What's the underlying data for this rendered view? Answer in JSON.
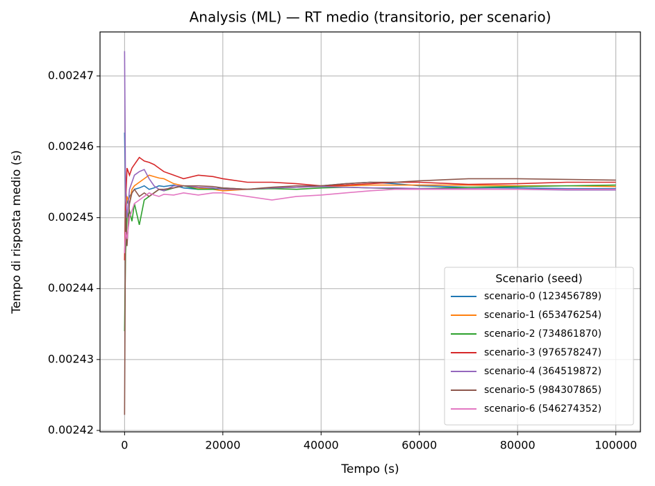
{
  "chart_data": {
    "type": "line",
    "title": "Analysis (ML) — RT medio (transitorio, per scenario)",
    "x_label": "Tempo (s)",
    "y_label": "Tempo di risposta medio (s)",
    "legend_title": "Scenario (seed)",
    "legend_position": "lower right",
    "grid": true,
    "xlim": [
      -5000,
      105000
    ],
    "xticks": [
      0,
      20000,
      40000,
      60000,
      80000,
      100000
    ],
    "ylim": [
      0.0024198,
      0.0024762
    ],
    "yticks": [
      0.00242,
      0.00243,
      0.00244,
      0.00245,
      0.00246,
      0.00247
    ],
    "x": [
      0,
      200,
      500,
      1000,
      1500,
      2000,
      3000,
      4000,
      5000,
      6000,
      7000,
      8000,
      10000,
      12000,
      15000,
      18000,
      20000,
      25000,
      30000,
      35000,
      40000,
      45000,
      50000,
      55000,
      60000,
      70000,
      80000,
      90000,
      100000
    ],
    "series": [
      {
        "name": "scenario-0 (123456789)",
        "color": "#1f77b4",
        "values": [
          0.002462,
          0.002454,
          0.002452,
          0.002453,
          0.0024535,
          0.002454,
          0.0024542,
          0.0024545,
          0.002454,
          0.0024542,
          0.0024545,
          0.0024544,
          0.0024546,
          0.0024542,
          0.002454,
          0.0024541,
          0.0024542,
          0.002454,
          0.0024542,
          0.0024543,
          0.0024545,
          0.0024548,
          0.002455,
          0.0024548,
          0.0024545,
          0.0024543,
          0.0024542,
          0.0024541,
          0.0024541
        ]
      },
      {
        "name": "scenario-1 (653476254)",
        "color": "#ff7f0e",
        "values": [
          0.002444,
          0.00245,
          0.002453,
          0.002452,
          0.002454,
          0.0024545,
          0.002455,
          0.0024555,
          0.002456,
          0.0024558,
          0.0024556,
          0.0024555,
          0.0024548,
          0.0024545,
          0.0024542,
          0.002454,
          0.0024538,
          0.002454,
          0.0024542,
          0.0024543,
          0.0024544,
          0.0024545,
          0.0024546,
          0.0024546,
          0.0024546,
          0.0024546,
          0.0024545,
          0.0024545,
          0.0024544
        ]
      },
      {
        "name": "scenario-2 (734861870)",
        "color": "#2ca02c",
        "values": [
          0.002434,
          0.002445,
          0.00245,
          0.002451,
          0.0024495,
          0.002452,
          0.002449,
          0.0024525,
          0.002453,
          0.0024535,
          0.002454,
          0.0024538,
          0.0024542,
          0.0024545,
          0.002454,
          0.002454,
          0.0024541,
          0.002454,
          0.0024541,
          0.002454,
          0.0024542,
          0.0024543,
          0.0024542,
          0.0024541,
          0.0024541,
          0.0024543,
          0.0024544,
          0.0024545,
          0.0024546
        ]
      },
      {
        "name": "scenario-3 (976578247)",
        "color": "#d62728",
        "values": [
          0.002444,
          0.002452,
          0.002457,
          0.002456,
          0.002457,
          0.0024575,
          0.0024585,
          0.002458,
          0.0024578,
          0.0024575,
          0.002457,
          0.0024565,
          0.002456,
          0.0024555,
          0.002456,
          0.0024558,
          0.0024555,
          0.002455,
          0.002455,
          0.0024548,
          0.0024545,
          0.0024546,
          0.0024548,
          0.002455,
          0.002455,
          0.0024547,
          0.0024548,
          0.002455,
          0.002455
        ]
      },
      {
        "name": "scenario-4 (364519872)",
        "color": "#9467bd",
        "values": [
          0.0024735,
          0.002453,
          0.00245,
          0.002454,
          0.002455,
          0.002456,
          0.0024565,
          0.0024568,
          0.0024555,
          0.0024545,
          0.002454,
          0.0024538,
          0.0024545,
          0.0024545,
          0.0024543,
          0.0024542,
          0.002454,
          0.002454,
          0.0024542,
          0.0024543,
          0.0024544,
          0.0024543,
          0.0024542,
          0.0024542,
          0.0024541,
          0.0024541,
          0.002454,
          0.0024539,
          0.0024539
        ]
      },
      {
        "name": "scenario-5 (984307865)",
        "color": "#8c564b",
        "values": [
          0.0024222,
          0.002451,
          0.002446,
          0.002452,
          0.0024535,
          0.002454,
          0.002453,
          0.0024535,
          0.002453,
          0.0024535,
          0.002454,
          0.002454,
          0.0024542,
          0.0024545,
          0.0024545,
          0.0024544,
          0.0024542,
          0.002454,
          0.0024543,
          0.0024545,
          0.0024545,
          0.0024548,
          0.002455,
          0.002455,
          0.0024552,
          0.0024555,
          0.0024555,
          0.0024554,
          0.0024553
        ]
      },
      {
        "name": "scenario-6 (546274352)",
        "color": "#e377c2",
        "values": [
          0.002445,
          0.002448,
          0.002447,
          0.00245,
          0.002451,
          0.002452,
          0.0024525,
          0.002453,
          0.0024535,
          0.0024532,
          0.002453,
          0.0024533,
          0.0024532,
          0.0024535,
          0.0024532,
          0.0024535,
          0.0024535,
          0.002453,
          0.0024525,
          0.002453,
          0.0024532,
          0.0024535,
          0.0024538,
          0.002454,
          0.002454,
          0.002454,
          0.002454,
          0.002454,
          0.002454
        ]
      }
    ]
  }
}
